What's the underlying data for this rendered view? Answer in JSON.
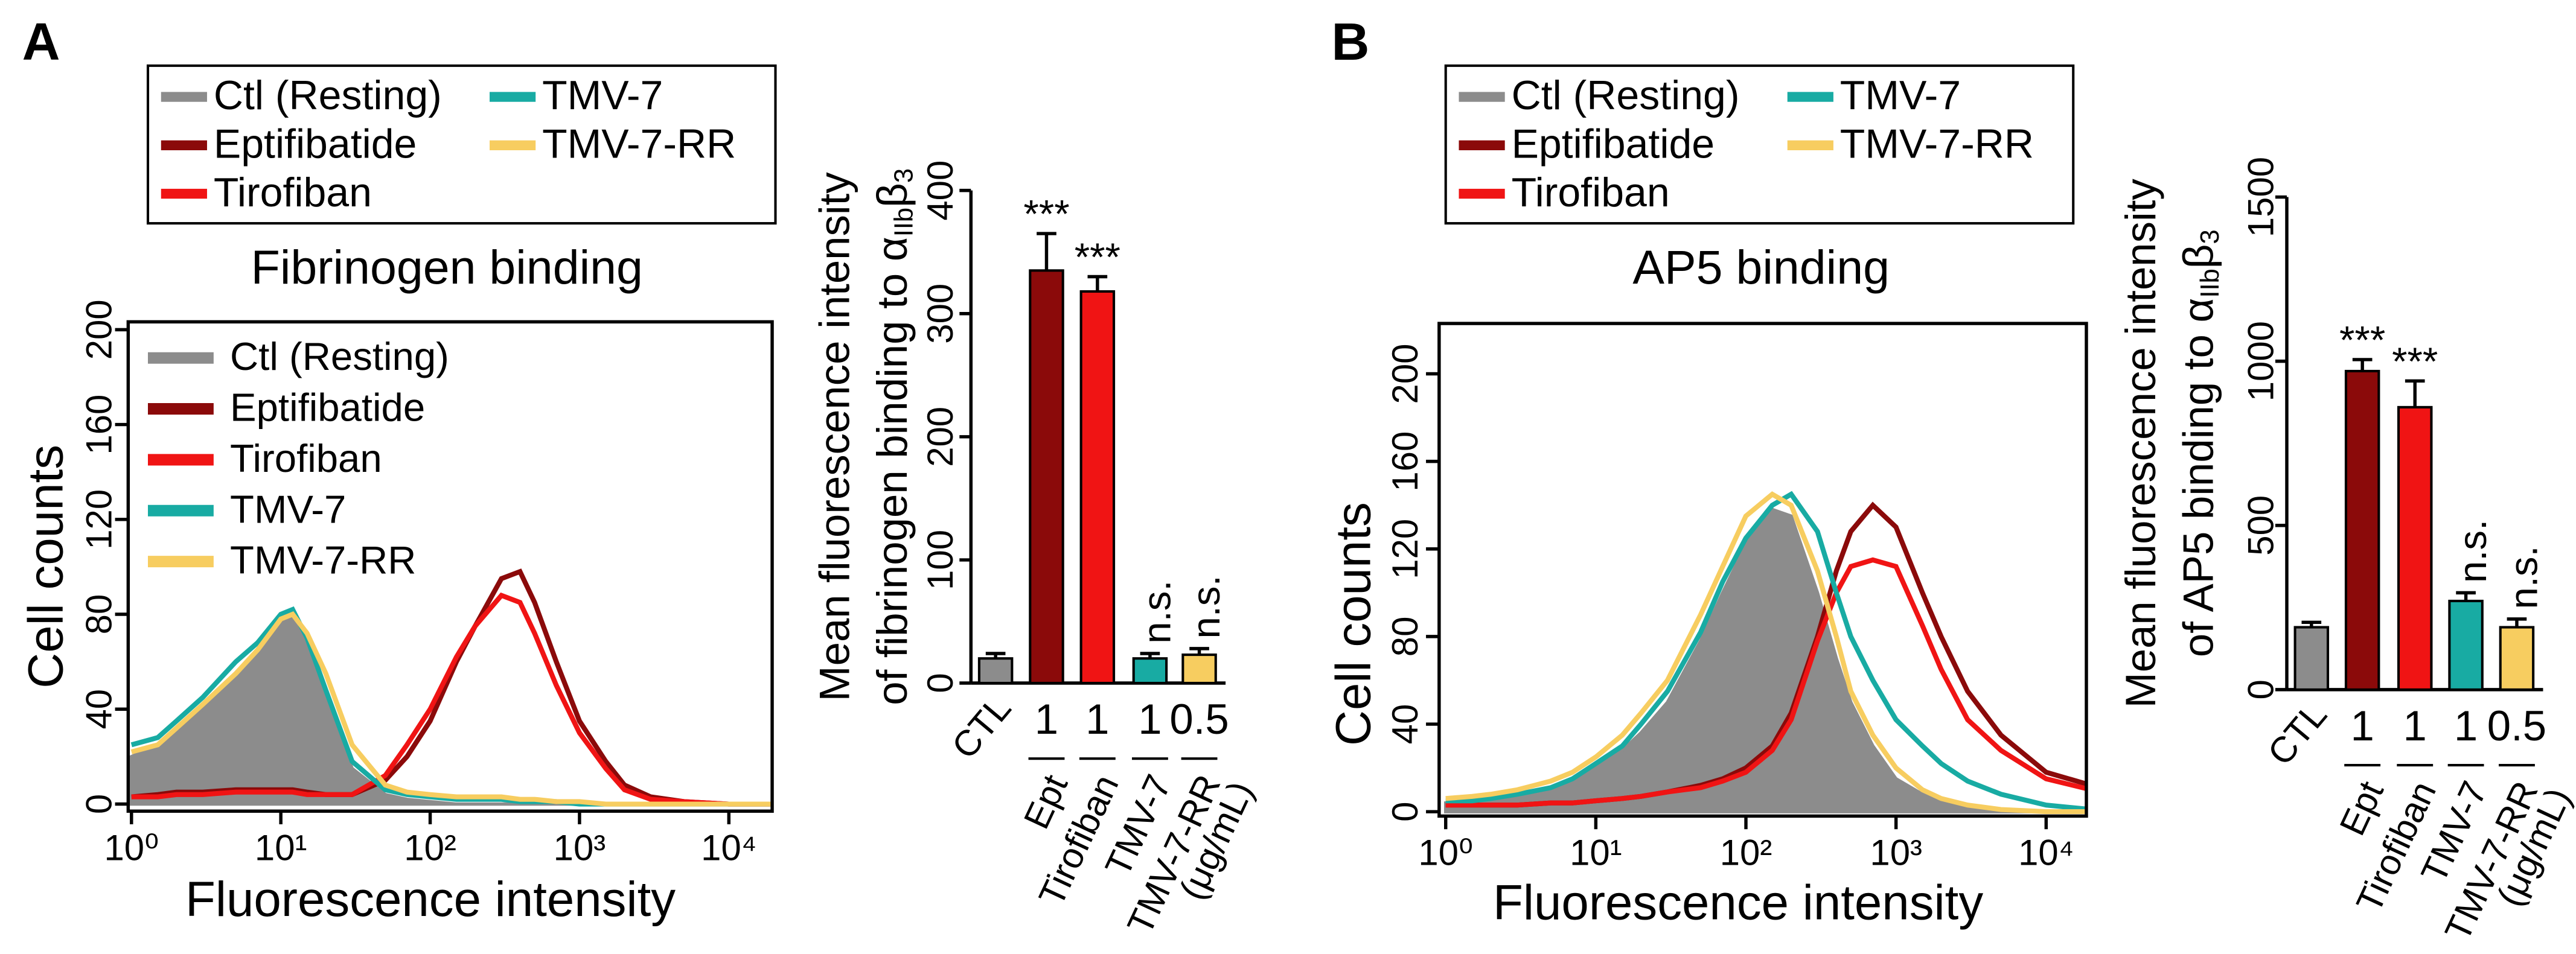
{
  "chart_data": [
    {
      "type": "line",
      "panel_label": "A",
      "title": "Fibrinogen binding",
      "x_label": "Fluorescence intensity",
      "y_label": "Cell counts",
      "log_x": true,
      "legend": [
        "above",
        "upper left"
      ],
      "xlim": [
        1,
        20000
      ],
      "ylim": [
        -3,
        204
      ],
      "xticks": [
        {
          "value": 1,
          "label": "10⁰"
        },
        {
          "value": 10,
          "label": "10¹"
        },
        {
          "value": 100,
          "label": "10²"
        },
        {
          "value": 1000,
          "label": "10³"
        },
        {
          "value": 10000,
          "label": "10⁴"
        }
      ],
      "yticks": [
        0,
        40,
        80,
        120,
        160,
        200
      ],
      "x": [
        1,
        1.5,
        2,
        3,
        5,
        7,
        10,
        12,
        15,
        20,
        30,
        50,
        70,
        100,
        150,
        200,
        300,
        400,
        500,
        700,
        1000,
        1500,
        2000,
        3000,
        5000,
        10000,
        20000
      ],
      "series": [
        {
          "name": "Ctl (Resting)",
          "color": "#8c8c8c",
          "fill": true,
          "values": [
            20,
            25,
            30,
            40,
            55,
            65,
            78,
            80,
            70,
            45,
            15,
            4,
            2,
            1,
            0,
            0,
            0,
            0,
            0,
            0,
            0,
            0,
            0,
            0,
            0,
            0,
            0
          ]
        },
        {
          "name": "Eptifibatide",
          "color": "#8b0a0a",
          "values": [
            3,
            4,
            5,
            5,
            6,
            6,
            6,
            6,
            5,
            4,
            4,
            10,
            20,
            35,
            60,
            75,
            95,
            98,
            85,
            60,
            35,
            18,
            8,
            3,
            1,
            0,
            0
          ]
        },
        {
          "name": "Tirofiban",
          "color": "#f01414",
          "values": [
            3,
            3,
            4,
            4,
            5,
            5,
            5,
            5,
            4,
            4,
            4,
            12,
            25,
            40,
            62,
            75,
            88,
            85,
            72,
            50,
            30,
            15,
            6,
            2,
            1,
            0,
            0
          ]
        },
        {
          "name": "TMV-7",
          "color": "#18aba3",
          "values": [
            25,
            28,
            35,
            45,
            60,
            68,
            80,
            82,
            70,
            48,
            18,
            6,
            4,
            3,
            2,
            2,
            2,
            1,
            1,
            1,
            0,
            0,
            0,
            0,
            0,
            0,
            0
          ]
        },
        {
          "name": "TMV-7-RR",
          "color": "#f7cd60",
          "values": [
            22,
            25,
            32,
            42,
            55,
            65,
            78,
            80,
            72,
            55,
            25,
            8,
            5,
            4,
            3,
            3,
            3,
            2,
            2,
            1,
            1,
            0,
            0,
            0,
            0,
            0,
            0
          ]
        }
      ]
    },
    {
      "type": "bar",
      "y_label": [
        "Mean fluorescence intensity",
        "of fibrinogen binding to α",
        "IIb",
        "β",
        "3"
      ],
      "categories": [
        "CTL",
        "1",
        "1",
        "1",
        "0.5"
      ],
      "group_labels": [
        null,
        "Ept",
        "Tirofiban",
        "TMV-7",
        "TMV-7-RR"
      ],
      "unit_label": "(μg/mL)",
      "values": [
        20,
        335,
        318,
        20,
        23
      ],
      "errors": [
        4,
        30,
        12,
        4,
        5
      ],
      "colors": [
        "#8c8c8c",
        "#8b0a0a",
        "#f01414",
        "#18aba3",
        "#f7cd60"
      ],
      "annotations": [
        null,
        "***",
        "***",
        "n.s.",
        "n.s."
      ],
      "ylim": [
        0,
        400
      ],
      "yticks": [
        0,
        100,
        200,
        300,
        400
      ]
    },
    {
      "type": "line",
      "panel_label": "B",
      "title": "AP5 binding",
      "x_label": "Fluorescence intensity",
      "y_label": "Cell counts",
      "log_x": true,
      "legend": [
        "above"
      ],
      "xlim": [
        1,
        20000
      ],
      "ylim": [
        -2,
        223
      ],
      "xticks": [
        {
          "value": 1,
          "label": "10⁰"
        },
        {
          "value": 10,
          "label": "10¹"
        },
        {
          "value": 100,
          "label": "10²"
        },
        {
          "value": 1000,
          "label": "10³"
        },
        {
          "value": 10000,
          "label": "10⁴"
        }
      ],
      "yticks": [
        0,
        40,
        80,
        120,
        160,
        200
      ],
      "x": [
        1,
        1.5,
        2,
        3,
        5,
        7,
        10,
        15,
        20,
        30,
        50,
        70,
        100,
        150,
        200,
        300,
        400,
        500,
        700,
        1000,
        1500,
        2000,
        3000,
        5000,
        10000,
        20000
      ],
      "series": [
        {
          "name": "Ctl (Resting)",
          "color": "#8c8c8c",
          "fill": true,
          "values": [
            4,
            5,
            6,
            8,
            10,
            14,
            20,
            28,
            36,
            50,
            78,
            100,
            122,
            138,
            135,
            100,
            70,
            50,
            30,
            15,
            8,
            5,
            2,
            1,
            0,
            0
          ]
        },
        {
          "name": "Eptifibatide",
          "color": "#8b0a0a",
          "values": [
            3,
            3,
            3,
            3,
            4,
            4,
            5,
            6,
            7,
            9,
            12,
            15,
            20,
            30,
            45,
            80,
            110,
            128,
            140,
            130,
            100,
            80,
            55,
            35,
            18,
            12
          ]
        },
        {
          "name": "Tirofiban",
          "color": "#f01414",
          "values": [
            3,
            3,
            3,
            3,
            4,
            4,
            5,
            6,
            7,
            9,
            11,
            14,
            18,
            28,
            42,
            78,
            100,
            112,
            115,
            112,
            85,
            65,
            42,
            28,
            15,
            10
          ]
        },
        {
          "name": "TMV-7",
          "color": "#18aba3",
          "values": [
            5,
            5,
            6,
            8,
            11,
            15,
            22,
            30,
            40,
            55,
            82,
            105,
            125,
            140,
            145,
            128,
            100,
            80,
            60,
            42,
            30,
            22,
            14,
            8,
            3,
            1
          ]
        },
        {
          "name": "TMV-7-RR",
          "color": "#f7cd60",
          "values": [
            6,
            7,
            8,
            10,
            14,
            18,
            25,
            35,
            45,
            60,
            90,
            112,
            135,
            145,
            140,
            110,
            80,
            55,
            35,
            20,
            10,
            6,
            3,
            1,
            0,
            0
          ]
        }
      ]
    },
    {
      "type": "bar",
      "y_label": [
        "Mean fluorescence intensity",
        "of AP5 binding to α",
        "IIb",
        "β",
        "3"
      ],
      "categories": [
        "CTL",
        "1",
        "1",
        "1",
        "0.5"
      ],
      "group_labels": [
        null,
        "Ept",
        "Tirofiban",
        "TMV-7",
        "TMV-7-RR"
      ],
      "unit_label": "(μg/mL)",
      "values": [
        190,
        970,
        860,
        270,
        190
      ],
      "errors": [
        15,
        35,
        80,
        25,
        25
      ],
      "colors": [
        "#8c8c8c",
        "#8b0a0a",
        "#f01414",
        "#18aba3",
        "#f7cd60"
      ],
      "annotations": [
        null,
        "***",
        "***",
        "n.s.",
        "n.s."
      ],
      "ylim": [
        0,
        1500
      ],
      "yticks": [
        0,
        500,
        1000,
        1500
      ]
    }
  ]
}
